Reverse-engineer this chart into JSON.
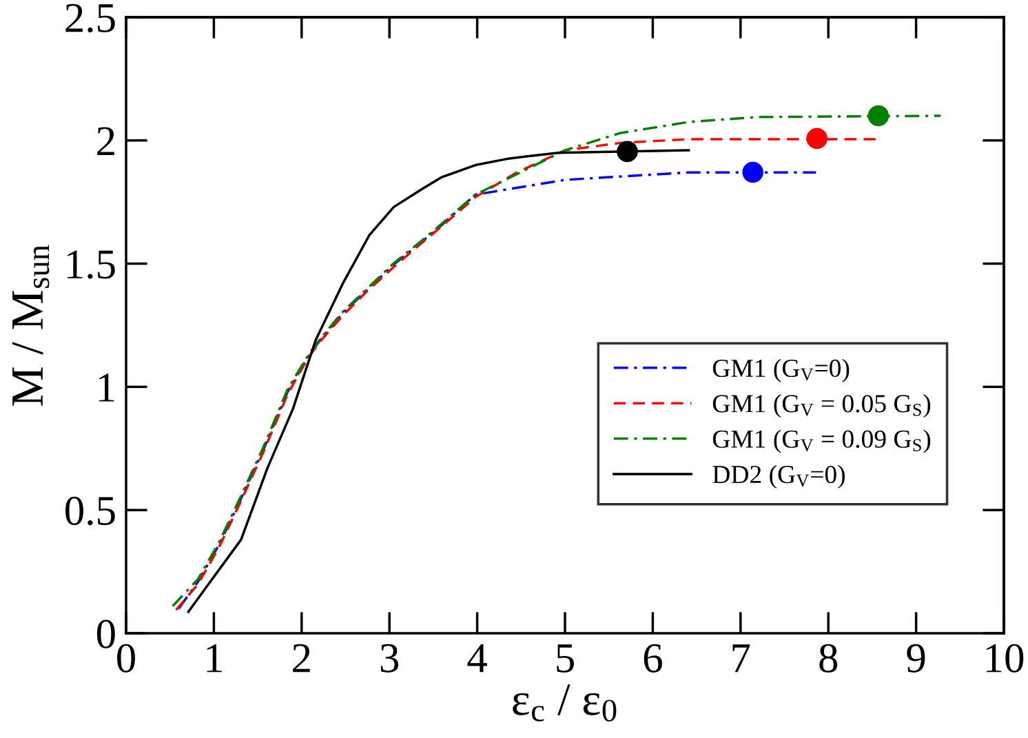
{
  "chart_data": {
    "type": "line",
    "xlabel": "ε$_{c}$ / ε$_{0}$",
    "ylabel": "M / M$_{sun}$",
    "xlim": [
      0,
      10
    ],
    "ylim": [
      0,
      2.5
    ],
    "xticks": [
      0,
      1,
      2,
      3,
      4,
      5,
      6,
      7,
      8,
      9,
      10
    ],
    "yticks": [
      0,
      0.5,
      1,
      1.5,
      2,
      2.5
    ],
    "grid": false,
    "legend": "right",
    "marker": "none",
    "series": [
      {
        "name": "GM1 (G$_{V}$=0)",
        "color": "#0000ff",
        "line_style": "dashdot",
        "x": [
          0.6,
          0.82,
          1.06,
          1.3,
          1.57,
          1.84,
          2.06,
          2.2,
          2.47,
          2.75,
          3.06,
          3.34,
          3.59,
          3.98,
          5.0,
          6.41,
          7.86
        ],
        "values": [
          0.1,
          0.21,
          0.36,
          0.54,
          0.75,
          0.98,
          1.115,
          1.185,
          1.3,
          1.395,
          1.5,
          1.58,
          1.655,
          1.78,
          1.84,
          1.87,
          1.87
        ]
      },
      {
        "name": "GM1 (G$_{V}$ = 0.05 G$_{S}$)",
        "color": "#ff0000",
        "line_style": "dashed",
        "x": [
          0.57,
          0.82,
          1.06,
          1.3,
          1.57,
          1.84,
          2.06,
          2.2,
          2.47,
          2.75,
          3.06,
          3.34,
          3.59,
          3.98,
          4.45,
          5.0,
          5.63,
          6.41,
          8.57
        ],
        "values": [
          0.095,
          0.2,
          0.35,
          0.53,
          0.74,
          0.97,
          1.11,
          1.18,
          1.29,
          1.39,
          1.49,
          1.575,
          1.65,
          1.77,
          1.87,
          1.96,
          1.99,
          2.005,
          2.005
        ]
      },
      {
        "name": "GM1 (G$_{V}$ = 0.09 G$_{S}$)",
        "color": "#008000",
        "line_style": "dashdot",
        "x": [
          0.53,
          0.82,
          1.06,
          1.3,
          1.57,
          1.84,
          2.06,
          2.2,
          2.47,
          2.75,
          3.06,
          3.34,
          3.59,
          3.98,
          5.0,
          5.63,
          6.41,
          7.2,
          9.28
        ],
        "values": [
          0.11,
          0.22,
          0.37,
          0.55,
          0.76,
          0.99,
          1.12,
          1.19,
          1.305,
          1.4,
          1.505,
          1.585,
          1.66,
          1.78,
          1.96,
          2.03,
          2.075,
          2.095,
          2.1
        ]
      },
      {
        "name": "DD2 (G$_{V}$=0)",
        "color": "#000000",
        "line_style": "solid",
        "x": [
          0.71,
          0.92,
          1.31,
          1.61,
          1.9,
          2.16,
          2.47,
          2.77,
          3.05,
          3.36,
          3.59,
          3.98,
          4.37,
          4.92,
          6.41
        ],
        "values": [
          0.087,
          0.19,
          0.38,
          0.67,
          0.91,
          1.19,
          1.42,
          1.615,
          1.73,
          1.8,
          1.85,
          1.9,
          1.927,
          1.95,
          1.96
        ]
      },
      {
        "type": "scatter",
        "marker": "circle",
        "color": "#0000ff",
        "x": [
          7.14
        ],
        "values": [
          1.871
        ]
      },
      {
        "type": "scatter",
        "marker": "circle",
        "color": "#ff0000",
        "x": [
          7.87
        ],
        "values": [
          2.008
        ]
      },
      {
        "type": "scatter",
        "marker": "circle",
        "color": "#008000",
        "x": [
          8.57
        ],
        "values": [
          2.1
        ]
      },
      {
        "type": "scatter",
        "marker": "circle",
        "color": "#000000",
        "x": [
          5.71
        ],
        "values": [
          1.955
        ]
      }
    ]
  }
}
